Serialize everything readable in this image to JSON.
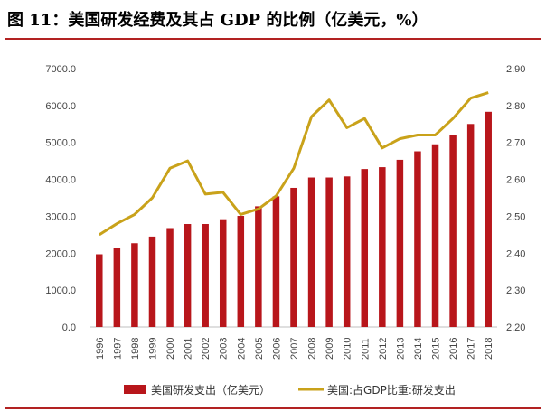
{
  "title": "图 11：美国研发经费及其占 GDP 的比例（亿美元，%）",
  "colors": {
    "bar": "#b8161b",
    "line": "#c9a21a",
    "rule": "#b22222"
  },
  "chart_data": {
    "type": "bar+line",
    "title": "图 11：美国研发经费及其占 GDP 的比例（亿美元，%）",
    "categories": [
      "1996",
      "1997",
      "1998",
      "1999",
      "2000",
      "2001",
      "2002",
      "2003",
      "2004",
      "2005",
      "2006",
      "2007",
      "2008",
      "2009",
      "2010",
      "2011",
      "2012",
      "2013",
      "2014",
      "2015",
      "2016",
      "2017",
      "2018"
    ],
    "series": [
      {
        "name": "美国研发支出（亿美元）",
        "type": "bar",
        "axis": "left",
        "values": [
          1970,
          2130,
          2270,
          2450,
          2680,
          2790,
          2790,
          2920,
          3010,
          3270,
          3540,
          3770,
          4050,
          4050,
          4080,
          4280,
          4330,
          4530,
          4760,
          4950,
          5190,
          5500,
          5830
        ]
      },
      {
        "name": "美国:占GDP比重:研发支出",
        "type": "line",
        "axis": "right",
        "values": [
          2.45,
          2.48,
          2.505,
          2.55,
          2.63,
          2.65,
          2.56,
          2.565,
          2.505,
          2.52,
          2.555,
          2.63,
          2.77,
          2.815,
          2.74,
          2.765,
          2.685,
          2.71,
          2.72,
          2.72,
          2.765,
          2.82,
          2.835
        ]
      }
    ],
    "y_left": {
      "min": 0,
      "max": 7000,
      "step": 1000,
      "tick_labels": [
        "0.0",
        "1000.0",
        "2000.0",
        "3000.0",
        "4000.0",
        "5000.0",
        "6000.0",
        "7000.0"
      ]
    },
    "y_right": {
      "min": 2.2,
      "max": 2.9,
      "step": 0.1,
      "tick_labels": [
        "2.20",
        "2.30",
        "2.40",
        "2.50",
        "2.60",
        "2.70",
        "2.80",
        "2.90"
      ]
    },
    "grid": false,
    "legend_position": "bottom"
  }
}
